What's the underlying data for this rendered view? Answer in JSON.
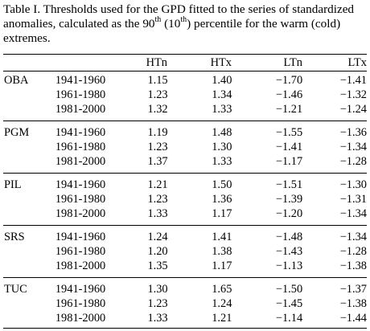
{
  "caption": {
    "prefix": "Table I. Thresholds used for the GPD fitted to the series of standardized anomalies, calculated as the 90",
    "sup1": "th",
    "middle": " (10",
    "sup2": "th",
    "suffix": ") percentile for the warm (cold) extremes."
  },
  "table": {
    "columns": [
      "",
      "",
      "HTn",
      "HTx",
      "LTn",
      "LTx"
    ],
    "groups": [
      {
        "station": "OBA",
        "rows": [
          {
            "period": "1941-1960",
            "HTn": "1.15",
            "HTx": "1.40",
            "LTn": "−1.70",
            "LTx": "−1.41"
          },
          {
            "period": "1961-1980",
            "HTn": "1.23",
            "HTx": "1.34",
            "LTn": "−1.46",
            "LTx": "−1.32"
          },
          {
            "period": "1981-2000",
            "HTn": "1.32",
            "HTx": "1.33",
            "LTn": "−1.21",
            "LTx": "−1.24"
          }
        ]
      },
      {
        "station": "PGM",
        "rows": [
          {
            "period": "1941-1960",
            "HTn": "1.19",
            "HTx": "1.48",
            "LTn": "−1.55",
            "LTx": "−1.36"
          },
          {
            "period": "1961-1980",
            "HTn": "1.23",
            "HTx": "1.30",
            "LTn": "−1.41",
            "LTx": "−1.34"
          },
          {
            "period": "1981-2000",
            "HTn": "1.37",
            "HTx": "1.33",
            "LTn": "−1.17",
            "LTx": "−1.28"
          }
        ]
      },
      {
        "station": "PIL",
        "rows": [
          {
            "period": "1941-1960",
            "HTn": "1.21",
            "HTx": "1.50",
            "LTn": "−1.51",
            "LTx": "−1.30"
          },
          {
            "period": "1961-1980",
            "HTn": "1.23",
            "HTx": "1.36",
            "LTn": "−1.39",
            "LTx": "−1.31"
          },
          {
            "period": "1981-2000",
            "HTn": "1.33",
            "HTx": "1.17",
            "LTn": "−1.20",
            "LTx": "−1.34"
          }
        ]
      },
      {
        "station": "SRS",
        "rows": [
          {
            "period": "1941-1960",
            "HTn": "1.24",
            "HTx": "1.41",
            "LTn": "−1.48",
            "LTx": "−1.34"
          },
          {
            "period": "1961-1980",
            "HTn": "1.20",
            "HTx": "1.38",
            "LTn": "−1.43",
            "LTx": "−1.28"
          },
          {
            "period": "1981-2000",
            "HTn": "1.35",
            "HTx": "1.17",
            "LTn": "−1.13",
            "LTx": "−1.38"
          }
        ]
      },
      {
        "station": "TUC",
        "rows": [
          {
            "period": "1941-1960",
            "HTn": "1.30",
            "HTx": "1.65",
            "LTn": "−1.50",
            "LTx": "−1.37"
          },
          {
            "period": "1961-1980",
            "HTn": "1.23",
            "HTx": "1.24",
            "LTn": "−1.45",
            "LTx": "−1.38"
          },
          {
            "period": "1981-2000",
            "HTn": "1.33",
            "HTx": "1.21",
            "LTn": "−1.14",
            "LTx": "−1.44"
          }
        ]
      }
    ]
  }
}
